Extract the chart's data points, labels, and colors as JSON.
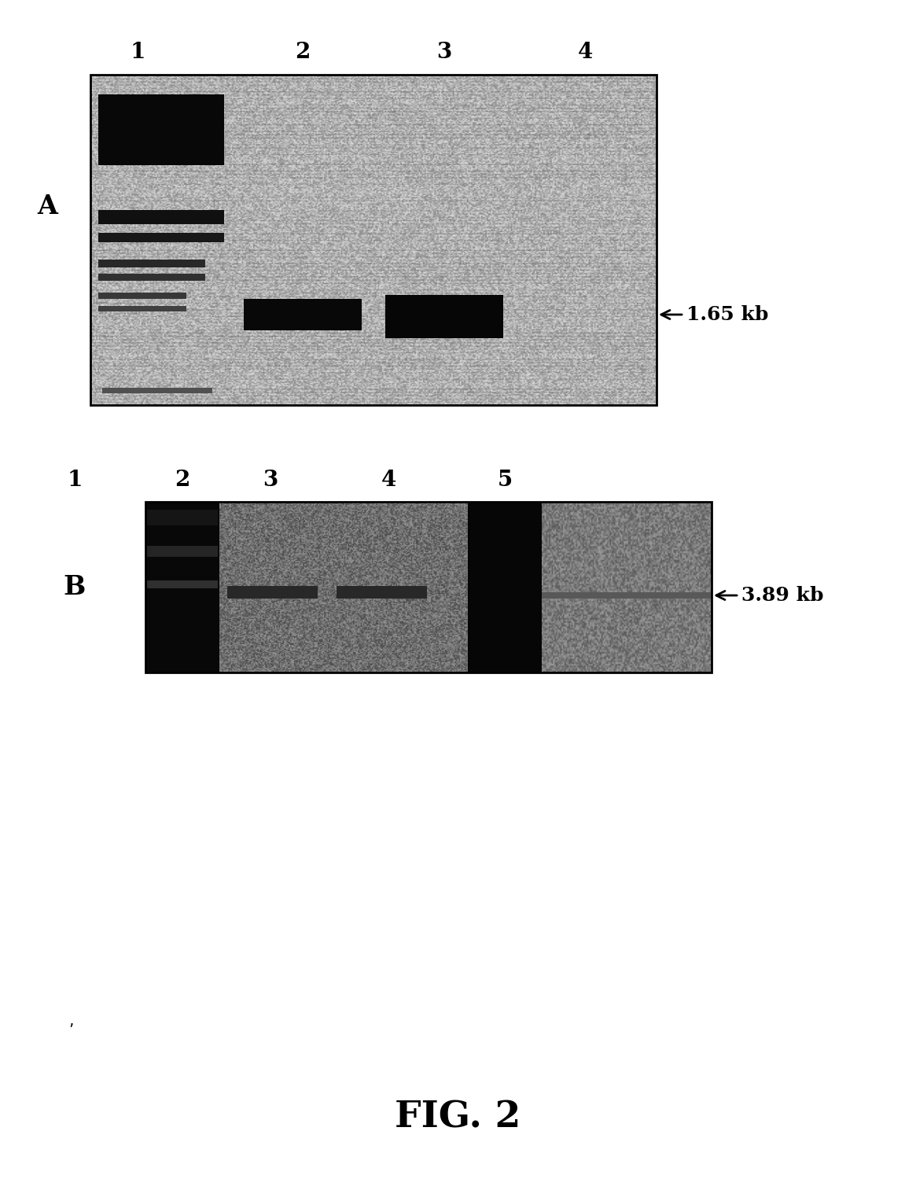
{
  "fig_width": 11.65,
  "fig_height": 15.13,
  "background_color": "#ffffff",
  "panel_A": {
    "label": "A",
    "label_fontsize": 24,
    "lane_labels": [
      "1",
      "2",
      "3",
      "4"
    ],
    "lane_label_fontsize": 20,
    "arrow_label": "1.65 kb",
    "arrow_label_fontsize": 18
  },
  "panel_B": {
    "label": "B",
    "label_fontsize": 24,
    "lane_labels": [
      "1",
      "2",
      "3",
      "4",
      "5"
    ],
    "lane_label_fontsize": 20,
    "arrow_label": "3.89 kb",
    "arrow_label_fontsize": 18
  },
  "fig_label": "FIG. 2",
  "fig_label_fontsize": 34,
  "fig_label_fontweight": "bold"
}
